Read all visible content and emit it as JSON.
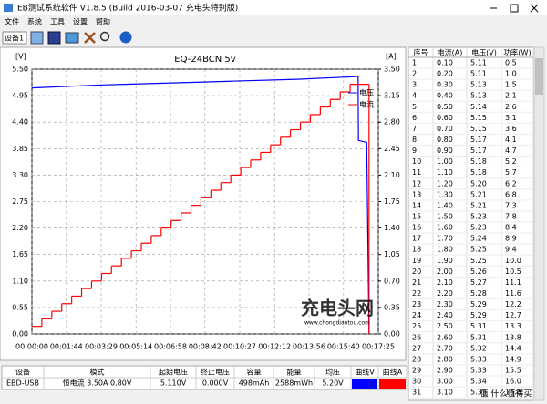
{
  "window": {
    "title": "EB测试系统软件 V1.8.5 (Build 2016-03-07 充电头特别版)"
  },
  "menu": [
    "文件",
    "系统",
    "工具",
    "设置",
    "帮助"
  ],
  "toolbar": {
    "device": "设备1"
  },
  "chart_data": {
    "type": "line",
    "title": "EQ-24BCN 5v",
    "y_label": "[V]",
    "y2_label": "[A]",
    "xlim": [
      0,
      1045
    ],
    "xticks": [
      {
        "value": 0,
        "label": "00:00:00"
      },
      {
        "value": 104,
        "label": "00:01:44"
      },
      {
        "value": 209,
        "label": "00:03:29"
      },
      {
        "value": 314,
        "label": "00:05:14"
      },
      {
        "value": 418,
        "label": "00:06:58"
      },
      {
        "value": 522,
        "label": "00:08:42"
      },
      {
        "value": 627,
        "label": "00:10:27"
      },
      {
        "value": 732,
        "label": "00:12:12"
      },
      {
        "value": 836,
        "label": "00:13:56"
      },
      {
        "value": 940,
        "label": "00:15:40"
      },
      {
        "value": 1045,
        "label": "00:17:25"
      }
    ],
    "ylim": [
      0,
      5.5
    ],
    "yticks": [
      {
        "value": 0,
        "label": "0.00"
      },
      {
        "value": 0.55,
        "label": "0.55"
      },
      {
        "value": 1.1,
        "label": "1.10"
      },
      {
        "value": 1.65,
        "label": "1.65"
      },
      {
        "value": 2.2,
        "label": "2.20"
      },
      {
        "value": 2.75,
        "label": "2.75"
      },
      {
        "value": 3.3,
        "label": "3.30"
      },
      {
        "value": 3.85,
        "label": "3.85"
      },
      {
        "value": 4.4,
        "label": "4.40"
      },
      {
        "value": 4.95,
        "label": "4.95"
      },
      {
        "value": 5.5,
        "label": "5.50"
      }
    ],
    "y2lim": [
      0,
      3.5
    ],
    "y2ticks": [
      {
        "value": 0,
        "label": "0.00"
      },
      {
        "value": 0.35,
        "label": "0.35"
      },
      {
        "value": 0.7,
        "label": "0.70"
      },
      {
        "value": 1.05,
        "label": "1.05"
      },
      {
        "value": 1.4,
        "label": "1.40"
      },
      {
        "value": 1.75,
        "label": "1.75"
      },
      {
        "value": 2.1,
        "label": "2.10"
      },
      {
        "value": 2.45,
        "label": "2.45"
      },
      {
        "value": 2.8,
        "label": "2.80"
      },
      {
        "value": 3.15,
        "label": "3.15"
      },
      {
        "value": 3.5,
        "label": "3.50"
      }
    ],
    "grid": true,
    "legend": "upper right",
    "series": [
      {
        "name": "电压",
        "color": "#0000ff",
        "axis": "y",
        "x": [
          0,
          200,
          400,
          600,
          800,
          960,
          984,
          985,
          1010,
          1017
        ],
        "values": [
          5.11,
          5.17,
          5.21,
          5.25,
          5.29,
          5.34,
          5.35,
          4.02,
          3.98,
          0
        ]
      },
      {
        "name": "电流",
        "color": "#ff0000",
        "axis": "y2",
        "drawstyle": "steps-post",
        "x": [
          0,
          30,
          60,
          90,
          120,
          150,
          180,
          210,
          240,
          270,
          300,
          330,
          360,
          390,
          420,
          450,
          480,
          510,
          540,
          570,
          600,
          630,
          660,
          690,
          720,
          750,
          780,
          810,
          840,
          870,
          900,
          930,
          960,
          1017
        ],
        "values": [
          0.1,
          0.2,
          0.3,
          0.4,
          0.5,
          0.6,
          0.7,
          0.8,
          0.9,
          1.0,
          1.1,
          1.2,
          1.3,
          1.4,
          1.5,
          1.6,
          1.7,
          1.8,
          1.9,
          2.0,
          2.1,
          2.2,
          2.3,
          2.4,
          2.5,
          2.6,
          2.7,
          2.8,
          2.9,
          3.0,
          3.1,
          3.2,
          3.3,
          0
        ]
      }
    ]
  },
  "readings": {
    "columns": [
      "序号",
      "电流(A)",
      "电压(V)",
      "功率(W)"
    ],
    "rows": [
      [
        "1",
        "0.10",
        "5.11",
        "0.5"
      ],
      [
        "2",
        "0.20",
        "5.11",
        "1.0"
      ],
      [
        "3",
        "0.30",
        "5.13",
        "1.5"
      ],
      [
        "4",
        "0.40",
        "5.13",
        "2.1"
      ],
      [
        "5",
        "0.50",
        "5.14",
        "2.6"
      ],
      [
        "6",
        "0.60",
        "5.15",
        "3.1"
      ],
      [
        "7",
        "0.70",
        "5.15",
        "3.6"
      ],
      [
        "8",
        "0.80",
        "5.17",
        "4.1"
      ],
      [
        "9",
        "0.90",
        "5.17",
        "4.7"
      ],
      [
        "10",
        "1.00",
        "5.18",
        "5.2"
      ],
      [
        "11",
        "1.10",
        "5.18",
        "5.7"
      ],
      [
        "12",
        "1.20",
        "5.20",
        "6.2"
      ],
      [
        "13",
        "1.30",
        "5.21",
        "6.8"
      ],
      [
        "14",
        "1.40",
        "5.21",
        "7.3"
      ],
      [
        "15",
        "1.50",
        "5.23",
        "7.8"
      ],
      [
        "16",
        "1.60",
        "5.23",
        "8.4"
      ],
      [
        "17",
        "1.70",
        "5.24",
        "8.9"
      ],
      [
        "18",
        "1.80",
        "5.25",
        "9.4"
      ],
      [
        "19",
        "1.90",
        "5.25",
        "10.0"
      ],
      [
        "20",
        "2.00",
        "5.26",
        "10.5"
      ],
      [
        "21",
        "2.10",
        "5.27",
        "11.1"
      ],
      [
        "22",
        "2.20",
        "5.28",
        "11.6"
      ],
      [
        "23",
        "2.30",
        "5.29",
        "12.2"
      ],
      [
        "24",
        "2.40",
        "5.29",
        "12.7"
      ],
      [
        "25",
        "2.50",
        "5.31",
        "13.3"
      ],
      [
        "26",
        "2.60",
        "5.31",
        "13.8"
      ],
      [
        "27",
        "2.70",
        "5.32",
        "14.4"
      ],
      [
        "28",
        "2.80",
        "5.33",
        "14.9"
      ],
      [
        "29",
        "2.90",
        "5.33",
        "15.5"
      ],
      [
        "30",
        "3.00",
        "5.34",
        "16.0"
      ],
      [
        "31",
        "3.10",
        "5.35",
        "16.6"
      ]
    ]
  },
  "summary": {
    "columns": [
      "设备",
      "模式",
      "起始电压",
      "终止电压",
      "容量",
      "能量",
      "均压",
      "曲线V",
      "曲线A"
    ],
    "row": [
      "EBD-USB",
      "恒电流 3.50A 0.80V",
      "5.110V",
      "0.000V",
      "498mAh",
      "2588mWh",
      "5.20V"
    ]
  },
  "watermarks": [
    "充电头网",
    "www.chongdiantou.com",
    "值 什么值得买"
  ]
}
